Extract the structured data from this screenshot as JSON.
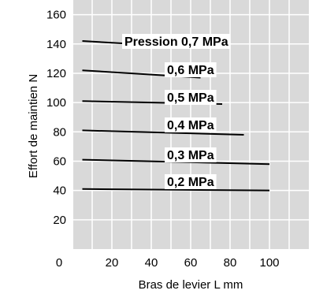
{
  "chart_data": {
    "type": "line",
    "title": "",
    "xlabel": "Bras de levier  L mm",
    "ylabel": "Effort de maintien  N",
    "xlim": [
      0,
      120
    ],
    "ylim": [
      0,
      170
    ],
    "xticks": [
      "0",
      "20",
      "40",
      "60",
      "80",
      "100"
    ],
    "yticks": [
      "20",
      "40",
      "60",
      "80",
      "100",
      "120",
      "140",
      "160"
    ],
    "grid": true,
    "series": [
      {
        "name": "Pression 0,7 MPa",
        "x": [
          5,
          57
        ],
        "y": [
          142,
          138
        ]
      },
      {
        "name": "0,6 MPa",
        "x": [
          5,
          65
        ],
        "y": [
          122,
          117
        ]
      },
      {
        "name": "0,5 MPa",
        "x": [
          5,
          76
        ],
        "y": [
          101,
          99
        ]
      },
      {
        "name": "0,4 MPa",
        "x": [
          5,
          87
        ],
        "y": [
          81,
          78
        ]
      },
      {
        "name": "0,3 MPa",
        "x": [
          5,
          100
        ],
        "y": [
          61,
          58
        ]
      },
      {
        "name": "0,2 MPa",
        "x": [
          5,
          100
        ],
        "y": [
          41,
          40
        ]
      }
    ]
  }
}
